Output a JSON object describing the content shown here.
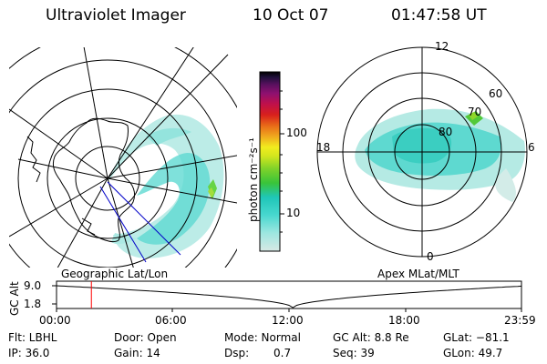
{
  "header": {
    "instrument": "Ultraviolet Imager",
    "date": "10 Oct 07",
    "time": "01:47:58 UT"
  },
  "left_map": {
    "caption": "Geographic Lat/Lon"
  },
  "right_map": {
    "caption": "Apex MLat/MLT",
    "mlt_labels": [
      "12",
      "18",
      "6",
      "0"
    ],
    "mlat_labels": [
      "60",
      "70",
      "80"
    ]
  },
  "colorbar": {
    "unit_label": "photon cm⁻²s⁻¹",
    "tick_labels": [
      "100",
      "10"
    ],
    "scale": "log",
    "colors": [
      "#d7e8e4",
      "#9ee6e0",
      "#49d8cf",
      "#1fc6b8",
      "#39c43a",
      "#7fd22a",
      "#d2e61e",
      "#f1ec1e",
      "#f0a81e",
      "#e86a18",
      "#d8201c",
      "#c0104a",
      "#8e1070",
      "#58105e",
      "#20103a",
      "#000000"
    ]
  },
  "timeline": {
    "axis_label": "GC Alt",
    "y_ticks": [
      "9.0",
      "1.8"
    ],
    "x_ticks": [
      "00:00",
      "06:00",
      "12:00",
      "18:00",
      "23:59"
    ],
    "marker_time": "01:47:58",
    "marker_color": "#ff0000"
  },
  "info": {
    "flt": "Flt: LBHL",
    "door": "Door: Open",
    "mode": "Mode: Normal",
    "gc_alt": "GC Alt: 8.8 Re",
    "glat": "GLat: −81.1",
    "ip": "IP: 36.0",
    "gain": "Gain: 14",
    "dsp_label": "Dsp:",
    "dsp_value": "0.7",
    "seq": "Seq: 39",
    "glon": "GLon: 49.7"
  }
}
